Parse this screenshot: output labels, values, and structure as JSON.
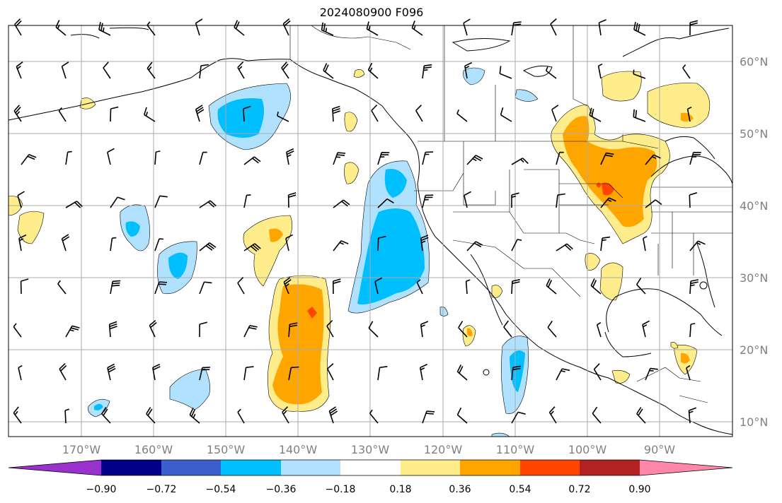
{
  "title": "2024080900 F096",
  "map": {
    "lon_ticks": [
      "170°W",
      "160°W",
      "150°W",
      "140°W",
      "130°W",
      "120°W",
      "110°W",
      "100°W",
      "90°W"
    ],
    "lat_ticks": [
      "60°N",
      "50°N",
      "40°N",
      "30°N",
      "20°N",
      "10°N"
    ]
  },
  "colorbar": {
    "labels": [
      "−0.90",
      "−0.72",
      "−0.54",
      "−0.36",
      "−0.18",
      "0.18",
      "0.36",
      "0.54",
      "0.72",
      "0.90"
    ],
    "colors": [
      "#9932CC",
      "#00008B",
      "#3A5FCD",
      "#00BFFF",
      "#B0E2FF",
      "#FFFFFF",
      "#FFEC8B",
      "#FFA500",
      "#FF4500",
      "#B22222",
      "#FF88AA"
    ]
  },
  "colors": {
    "grid": "#aaaaaa",
    "coast": "#000000"
  }
}
